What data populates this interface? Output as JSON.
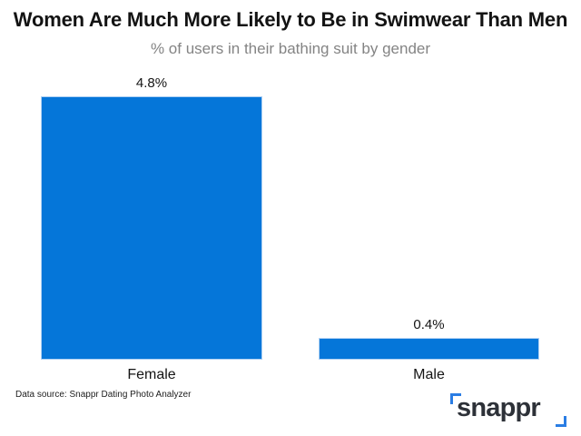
{
  "title": "Women Are Much More Likely to Be in Swimwear Than Men",
  "subtitle": "% of users in their bathing suit by gender",
  "source_note": "Data source: Snappr Dating Photo Analyzer",
  "logo": {
    "wordmark": "snappr"
  },
  "colors": {
    "bar": "#0576d9",
    "logo_accent": "#2a7de4",
    "logo_text": "#2d3138",
    "title_text": "#131313",
    "subtitle_text": "#848484"
  },
  "chart_data": {
    "type": "bar",
    "title": "Women Are Much More Likely to Be in Swimwear Than Men",
    "subtitle": "% of users in their bathing suit by gender",
    "categories": [
      "Female",
      "Male"
    ],
    "values": [
      4.8,
      0.4
    ],
    "value_labels": [
      "4.8%",
      "0.4%"
    ],
    "xlabel": "",
    "ylabel": "",
    "ylim": [
      0,
      4.8
    ],
    "grid": false,
    "legend": "none",
    "orientation": "vertical",
    "data_labels": "above-bars",
    "source": "Snappr Dating Photo Analyzer"
  }
}
